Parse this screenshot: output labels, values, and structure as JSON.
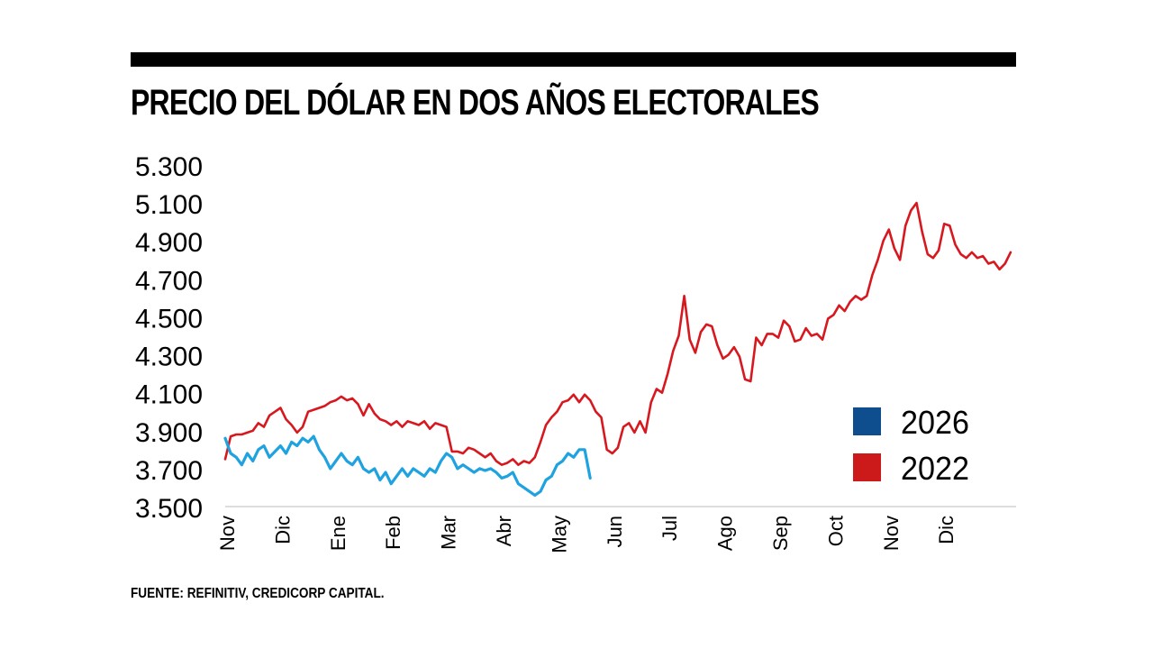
{
  "title": "PRECIO DEL DÓLAR EN DOS AÑOS ELECTORALES",
  "source": "FUENTE: REFINITIV, CREDICORP CAPITAL.",
  "chart_data": {
    "type": "line",
    "title": "PRECIO DEL DÓLAR EN DOS AÑOS ELECTORALES",
    "xlabel": "",
    "ylabel": "",
    "ylim": [
      3500,
      5300
    ],
    "yticks": [
      3500,
      3700,
      3900,
      4100,
      4300,
      4500,
      4700,
      4900,
      5100,
      5300
    ],
    "ytick_labels": [
      "3.500",
      "3.700",
      "3.900",
      "4.100",
      "4.300",
      "4.500",
      "4.700",
      "4.900",
      "5.100",
      "5.300"
    ],
    "xlim": [
      0,
      14.3
    ],
    "categories": [
      "Nov",
      "Dic",
      "Ene",
      "Feb",
      "Mar",
      "Abr",
      "May",
      "Jun",
      "Jul",
      "Ago",
      "Sep",
      "Oct",
      "Nov",
      "Dic"
    ],
    "grid": false,
    "legend_position": "bottom-right",
    "series": [
      {
        "name": "2026",
        "color": "#1fa2e0",
        "legend_color": "#0e4e8f",
        "x": [
          0.0,
          0.1,
          0.2,
          0.3,
          0.4,
          0.5,
          0.6,
          0.7,
          0.8,
          0.9,
          1.0,
          1.1,
          1.2,
          1.3,
          1.4,
          1.5,
          1.6,
          1.7,
          1.8,
          1.9,
          2.0,
          2.1,
          2.2,
          2.3,
          2.4,
          2.5,
          2.6,
          2.7,
          2.8,
          2.9,
          3.0,
          3.1,
          3.2,
          3.3,
          3.4,
          3.5,
          3.6,
          3.7,
          3.8,
          3.9,
          4.0,
          4.1,
          4.2,
          4.3,
          4.4,
          4.5,
          4.6,
          4.7,
          4.8,
          4.9,
          5.0,
          5.1,
          5.2,
          5.3,
          5.4,
          5.5,
          5.6,
          5.7,
          5.8,
          5.9,
          6.0,
          6.1,
          6.2,
          6.3,
          6.4,
          6.5,
          6.6
        ],
        "values": [
          3860,
          3780,
          3760,
          3720,
          3780,
          3740,
          3800,
          3820,
          3760,
          3790,
          3820,
          3780,
          3840,
          3820,
          3860,
          3840,
          3870,
          3800,
          3760,
          3700,
          3740,
          3780,
          3740,
          3720,
          3760,
          3700,
          3680,
          3700,
          3640,
          3680,
          3620,
          3660,
          3700,
          3660,
          3700,
          3680,
          3660,
          3700,
          3680,
          3740,
          3780,
          3760,
          3700,
          3720,
          3700,
          3680,
          3700,
          3690,
          3700,
          3680,
          3650,
          3660,
          3680,
          3620,
          3600,
          3580,
          3560,
          3580,
          3640,
          3660,
          3720,
          3740,
          3780,
          3760,
          3800,
          3800,
          3650
        ]
      },
      {
        "name": "2022",
        "color": "#d7181f",
        "legend_color": "#cc1a1a",
        "x": [
          0.0,
          0.1,
          0.2,
          0.3,
          0.4,
          0.5,
          0.6,
          0.7,
          0.8,
          0.9,
          1.0,
          1.1,
          1.2,
          1.3,
          1.4,
          1.5,
          1.6,
          1.7,
          1.8,
          1.9,
          2.0,
          2.1,
          2.2,
          2.3,
          2.4,
          2.5,
          2.6,
          2.7,
          2.8,
          2.9,
          3.0,
          3.1,
          3.2,
          3.3,
          3.4,
          3.5,
          3.6,
          3.7,
          3.8,
          3.9,
          4.0,
          4.1,
          4.2,
          4.3,
          4.4,
          4.5,
          4.6,
          4.7,
          4.8,
          4.9,
          5.0,
          5.1,
          5.2,
          5.3,
          5.4,
          5.5,
          5.6,
          5.7,
          5.8,
          5.9,
          6.0,
          6.1,
          6.2,
          6.3,
          6.4,
          6.5,
          6.6,
          6.7,
          6.8,
          6.9,
          7.0,
          7.1,
          7.2,
          7.3,
          7.4,
          7.5,
          7.6,
          7.7,
          7.8,
          7.9,
          8.0,
          8.1,
          8.2,
          8.3,
          8.4,
          8.5,
          8.6,
          8.7,
          8.8,
          8.9,
          9.0,
          9.1,
          9.2,
          9.3,
          9.4,
          9.5,
          9.6,
          9.7,
          9.8,
          9.9,
          10.0,
          10.1,
          10.2,
          10.3,
          10.4,
          10.5,
          10.6,
          10.7,
          10.8,
          10.9,
          11.0,
          11.1,
          11.2,
          11.3,
          11.4,
          11.5,
          11.6,
          11.7,
          11.8,
          11.9,
          12.0,
          12.1,
          12.2,
          12.3,
          12.4,
          12.5,
          12.6,
          12.7,
          12.8,
          12.9,
          13.0,
          13.1,
          13.2,
          13.3,
          13.4,
          13.5,
          13.6,
          13.7,
          13.8,
          13.9,
          14.0,
          14.1,
          14.2
        ],
        "values": [
          3750,
          3870,
          3880,
          3880,
          3890,
          3900,
          3940,
          3920,
          3980,
          4000,
          4020,
          3960,
          3930,
          3890,
          3920,
          4000,
          4010,
          4020,
          4030,
          4050,
          4060,
          4080,
          4060,
          4070,
          4040,
          3980,
          4040,
          3990,
          3960,
          3950,
          3930,
          3950,
          3920,
          3950,
          3940,
          3930,
          3950,
          3910,
          3940,
          3930,
          3920,
          3790,
          3790,
          3780,
          3810,
          3800,
          3780,
          3760,
          3780,
          3740,
          3720,
          3730,
          3750,
          3720,
          3740,
          3730,
          3760,
          3840,
          3930,
          3970,
          4000,
          4050,
          4060,
          4090,
          4050,
          4090,
          4060,
          4000,
          3970,
          3800,
          3780,
          3810,
          3920,
          3940,
          3890,
          3950,
          3890,
          4050,
          4120,
          4100,
          4200,
          4320,
          4400,
          4610,
          4380,
          4310,
          4420,
          4460,
          4450,
          4350,
          4280,
          4300,
          4340,
          4290,
          4170,
          4160,
          4390,
          4350,
          4410,
          4410,
          4390,
          4480,
          4450,
          4370,
          4380,
          4440,
          4400,
          4410,
          4380,
          4490,
          4510,
          4560,
          4530,
          4580,
          4610,
          4590,
          4610,
          4720,
          4800,
          4900,
          4960,
          4860,
          4800,
          4980,
          5060,
          5100,
          4950,
          4830,
          4810,
          4850,
          4990,
          4980,
          4880,
          4830,
          4810,
          4840,
          4810,
          4820,
          4780,
          4790,
          4750,
          4780,
          4840
        ]
      }
    ]
  }
}
